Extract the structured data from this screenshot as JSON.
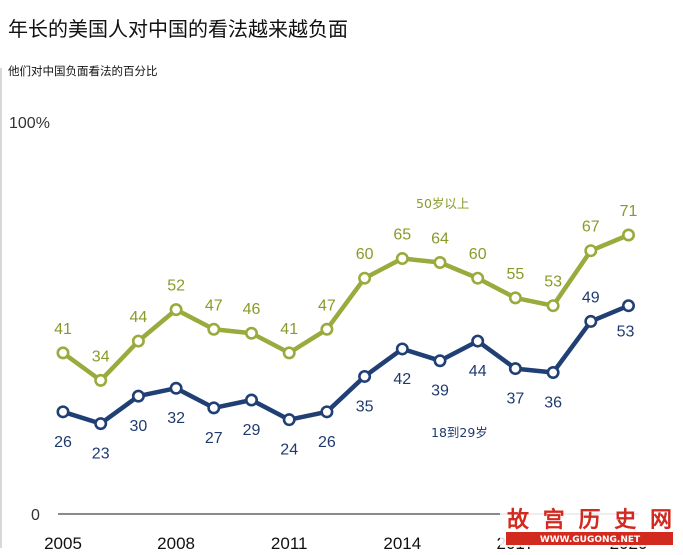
{
  "title": "年长的美国人对中国的看法越来越负面",
  "subtitle": "他们对中国负面看法的百分比",
  "watermark": {
    "name": "故宫历史网",
    "url": "WWW.GUGONG.NET"
  },
  "colors": {
    "older": "#9aaa3c",
    "younger": "#203f74",
    "axis": "#444444",
    "watermark": "#d32a20"
  },
  "chart_data": {
    "type": "line",
    "x": [
      2005,
      2006,
      2007,
      2008,
      2009,
      2010,
      2011,
      2012,
      2013,
      2014,
      2015,
      2016,
      2017,
      2018,
      2019,
      2020
    ],
    "xticks": [
      "2005",
      "2008",
      "2011",
      "2014",
      "2017",
      "2020"
    ],
    "ylim": [
      0,
      100
    ],
    "ytick_labels": [
      "0",
      "100%"
    ],
    "series": [
      {
        "name": "50岁以上",
        "values": [
          41,
          34,
          44,
          52,
          47,
          46,
          41,
          47,
          60,
          65,
          64,
          60,
          55,
          53,
          67,
          71
        ]
      },
      {
        "name": "18到29岁",
        "values": [
          26,
          23,
          30,
          32,
          27,
          29,
          24,
          26,
          35,
          42,
          39,
          44,
          37,
          36,
          49,
          53
        ]
      }
    ]
  }
}
